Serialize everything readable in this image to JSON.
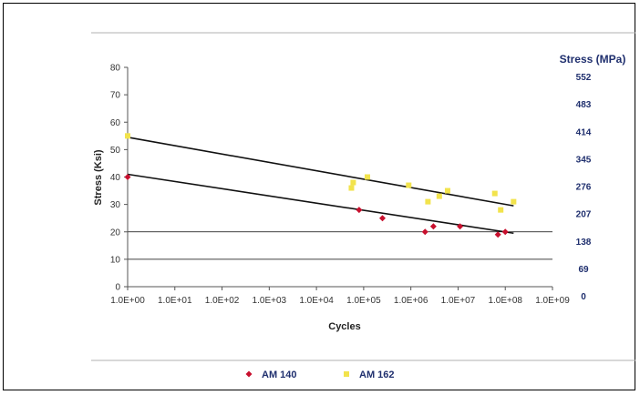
{
  "chart_data": {
    "type": "scatter",
    "title": "",
    "xlabel": "Cycles",
    "ylabel": "Stress (Ksi)",
    "y2label": "Stress (MPa)",
    "x_scale": "log",
    "xlim": [
      1,
      1000000000
    ],
    "ylim": [
      0,
      80
    ],
    "x_tick_labels": [
      "1.0E+00",
      "1.0E+01",
      "1.0E+02",
      "1.0E+03",
      "1.0E+04",
      "1.0E+05",
      "1.0E+06",
      "1.0E+07",
      "1.0E+08",
      "1.0E+09"
    ],
    "y_ticks": [
      0,
      10,
      20,
      30,
      40,
      50,
      60,
      70,
      80
    ],
    "y2_tick_labels": [
      "0",
      "69",
      "138",
      "207",
      "276",
      "345",
      "414",
      "483",
      "552"
    ],
    "grid": "horizontal lines at y = 10 and y = 20",
    "legend_position": "bottom",
    "series": [
      {
        "name": "AM 140",
        "color": "#c8102e",
        "marker": "diamond",
        "points": [
          [
            1,
            40
          ],
          [
            80000,
            28
          ],
          [
            250000,
            25
          ],
          [
            2000000,
            20
          ],
          [
            3000000,
            22
          ],
          [
            11000000,
            22
          ],
          [
            70000000,
            19
          ],
          [
            100000000,
            20
          ]
        ]
      },
      {
        "name": "AM 162",
        "color": "#f2e34c",
        "marker": "square",
        "points": [
          [
            1,
            55
          ],
          [
            55000,
            36
          ],
          [
            60000,
            38
          ],
          [
            120000,
            40
          ],
          [
            900000,
            37
          ],
          [
            2300000,
            31
          ],
          [
            4000000,
            33
          ],
          [
            6000000,
            35
          ],
          [
            60000000,
            34
          ],
          [
            80000000,
            28
          ],
          [
            150000000,
            31
          ]
        ]
      }
    ],
    "trendlines": [
      {
        "series": "AM 140",
        "from": [
          1,
          41
        ],
        "to": [
          150000000,
          19.5
        ]
      },
      {
        "series": "AM 162",
        "from": [
          1,
          54.5
        ],
        "to": [
          150000000,
          29.5
        ]
      }
    ]
  }
}
